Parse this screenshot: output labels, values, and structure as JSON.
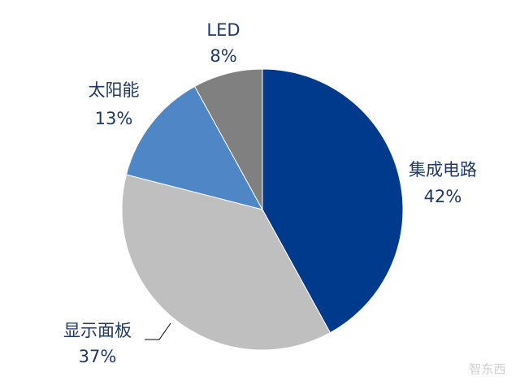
{
  "chart_data": {
    "type": "pie",
    "categories": [
      "集成电路",
      "显示面板",
      "太阳能",
      "LED"
    ],
    "values": [
      42,
      37,
      13,
      8
    ],
    "value_labels": [
      "42%",
      "37%",
      "13%",
      "8%"
    ],
    "colors": [
      "#003a8c",
      "#bfbfbf",
      "#4f86c6",
      "#808080"
    ],
    "watermark": "智东西"
  }
}
